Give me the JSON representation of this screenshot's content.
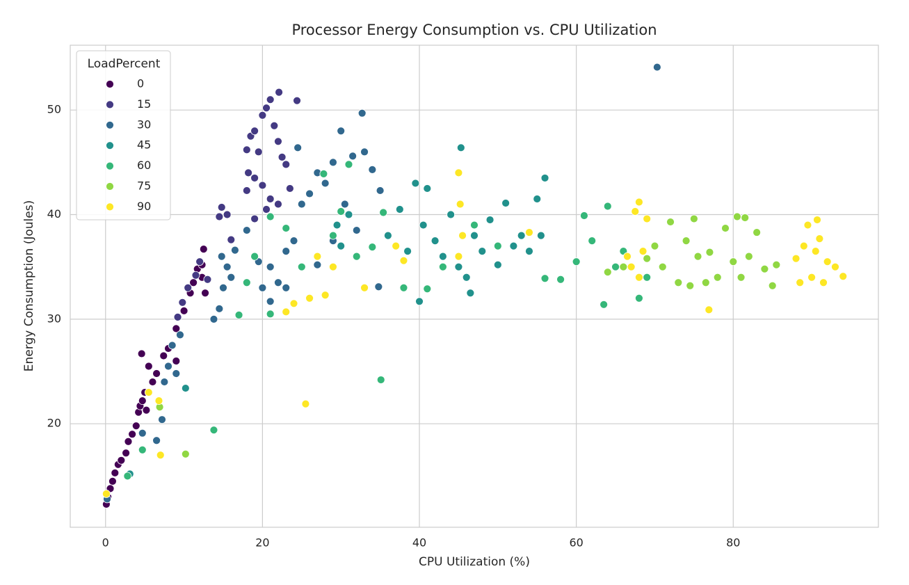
{
  "chart_data": {
    "type": "scatter",
    "title": "Processor Energy Consumption vs. CPU Utilization",
    "x_label": "CPU Utilization (%)",
    "y_label": "Energy Consumption (Joules)",
    "legend_title": "LoadPercent",
    "legend_loc": "upper left",
    "grid": true,
    "xlim": [
      -4.5,
      98.5
    ],
    "ylim": [
      10.1,
      56.2
    ],
    "xticks": [
      0,
      20,
      40,
      60,
      80
    ],
    "yticks": [
      20,
      30,
      40,
      50
    ],
    "series": [
      {
        "name": "0",
        "color": "#440154",
        "x": [
          0.1,
          0.3,
          0.6,
          0.9,
          1.2,
          1.6,
          2,
          2.6,
          2.9,
          3.4,
          3.9,
          4.2,
          4.4,
          4.7,
          5.0,
          5.2,
          5.5,
          4.6,
          6,
          6.5,
          7.4,
          8.0,
          9,
          9,
          10,
          10.8,
          11.2,
          11.7,
          12.3,
          12.5,
          12.7,
          12.3
        ],
        "y": [
          12.3,
          13,
          13.8,
          14.5,
          15.3,
          16.1,
          16.5,
          17.2,
          18.3,
          19,
          19.8,
          21.1,
          21.7,
          22.2,
          23,
          21.3,
          25.5,
          26.7,
          24,
          24.8,
          26.5,
          27.2,
          29.1,
          26,
          30.8,
          32.5,
          33.5,
          34.8,
          35.2,
          36.7,
          32.5,
          34
        ]
      },
      {
        "name": "15",
        "color": "#443a83",
        "x": [
          9.2,
          9.8,
          10.5,
          11.5,
          12,
          13,
          14.8,
          15.5,
          14.5,
          18,
          18.5,
          18.2,
          19,
          19.5,
          20,
          20.5,
          21,
          22.1,
          21.5,
          22,
          22.5,
          23,
          24.4,
          20,
          19,
          18,
          21,
          22,
          23.5,
          19,
          20.5,
          16
        ],
        "y": [
          30.2,
          31.6,
          33,
          34.2,
          35.5,
          33.8,
          40.7,
          40,
          39.8,
          46.2,
          47.5,
          44,
          48,
          46,
          49.5,
          50.2,
          51,
          51.7,
          48.5,
          47,
          45.5,
          44.8,
          50.9,
          42.8,
          43.5,
          42.3,
          41.5,
          41,
          42.5,
          39.6,
          40.5,
          37.6
        ]
      },
      {
        "name": "30",
        "color": "#31688e",
        "x": [
          0.2,
          6.5,
          7.2,
          7.5,
          8,
          8.5,
          9.5,
          9,
          4.7,
          13.8,
          14.5,
          15,
          15.5,
          16,
          14.8,
          16.5,
          18,
          19.5,
          20,
          21,
          22,
          23,
          24,
          25,
          26,
          27,
          28,
          29,
          30,
          31.5,
          32.7,
          33,
          34,
          35,
          30.5,
          24.5,
          27,
          29,
          32,
          34.8,
          21,
          23,
          70.3
        ],
        "y": [
          12.8,
          18.4,
          20.4,
          24,
          25.5,
          27.5,
          28.5,
          24.8,
          19.1,
          30,
          31,
          33,
          35,
          34,
          36,
          36.6,
          38.5,
          35.5,
          33,
          35,
          33.5,
          36.5,
          37.5,
          41,
          42,
          44,
          43,
          45,
          48,
          45.6,
          49.7,
          46,
          44.3,
          42.3,
          41,
          46.4,
          35.2,
          37.5,
          38.5,
          33.1,
          31.7,
          33,
          54.1
        ]
      },
      {
        "name": "45",
        "color": "#21918c",
        "x": [
          36,
          37.5,
          38.5,
          39.5,
          40,
          40.5,
          41,
          42,
          43,
          44,
          45.3,
          45,
          46,
          46.5,
          47,
          48,
          49,
          50,
          51,
          52,
          53,
          54,
          55,
          56,
          55.5,
          31,
          30,
          29.5,
          10.2,
          3.1
        ],
        "y": [
          38,
          40.5,
          36.5,
          43,
          31.7,
          39,
          42.5,
          37.5,
          36,
          40,
          46.4,
          35,
          34,
          32.5,
          38,
          36.5,
          39.5,
          35.2,
          41.1,
          37,
          38,
          36.5,
          41.5,
          43.5,
          38,
          40,
          37,
          39,
          23.4,
          15.2
        ]
      },
      {
        "name": "60",
        "color": "#35b779",
        "x": [
          2.8,
          4.7,
          13.8,
          35.1,
          21,
          17,
          18,
          19,
          21,
          23,
          25,
          27.8,
          29,
          30,
          31,
          32,
          34,
          35.4,
          38,
          41,
          43,
          45,
          47,
          50,
          56,
          58,
          60,
          61,
          62,
          63.5,
          64,
          65,
          66,
          68,
          69
        ],
        "y": [
          15,
          17.5,
          19.4,
          24.2,
          30.5,
          30.4,
          33.5,
          36,
          39.8,
          38.7,
          35,
          43.9,
          38,
          40.3,
          44.8,
          36,
          36.9,
          40.2,
          33,
          32.9,
          35,
          36,
          39,
          37,
          33.9,
          33.8,
          35.5,
          39.9,
          37.5,
          31.4,
          40.8,
          35,
          36.5,
          32,
          34
        ]
      },
      {
        "name": "75",
        "color": "#90d743",
        "x": [
          6.9,
          10.2,
          64,
          66,
          69,
          70,
          71,
          72,
          73,
          74,
          75,
          75.5,
          76.5,
          77,
          78,
          79,
          80,
          80.5,
          81.5,
          81,
          82,
          83,
          84,
          85,
          85.5,
          74.5
        ],
        "y": [
          21.6,
          17.1,
          34.5,
          35,
          35.8,
          37,
          35,
          39.3,
          33.5,
          37.5,
          39.6,
          36,
          33.5,
          36.4,
          34,
          38.7,
          35.5,
          39.8,
          39.7,
          34,
          36,
          38.3,
          34.8,
          33.2,
          35.2,
          33.2
        ]
      },
      {
        "name": "90",
        "color": "#fde725",
        "x": [
          0.1,
          5.5,
          7,
          6.8,
          25.5,
          23,
          24,
          26,
          28,
          27,
          29,
          33,
          37,
          38,
          45,
          45.2,
          45.5,
          45,
          54,
          67,
          67.5,
          68,
          68.5,
          68,
          69,
          66.5,
          76.9,
          88,
          89,
          89.5,
          90,
          90.5,
          91,
          91.5,
          92,
          93,
          94,
          90.7,
          88.5
        ],
        "y": [
          13.3,
          23,
          17,
          22.2,
          21.9,
          30.7,
          31.5,
          32,
          32.3,
          36,
          35,
          33,
          37,
          35.6,
          44,
          41,
          38,
          36,
          38.3,
          35,
          40.3,
          41.2,
          36.5,
          34,
          39.6,
          36,
          30.9,
          35.8,
          37,
          39,
          34,
          36.5,
          37.7,
          33.5,
          35.5,
          35,
          34.1,
          39.5,
          33.5
        ]
      }
    ]
  }
}
